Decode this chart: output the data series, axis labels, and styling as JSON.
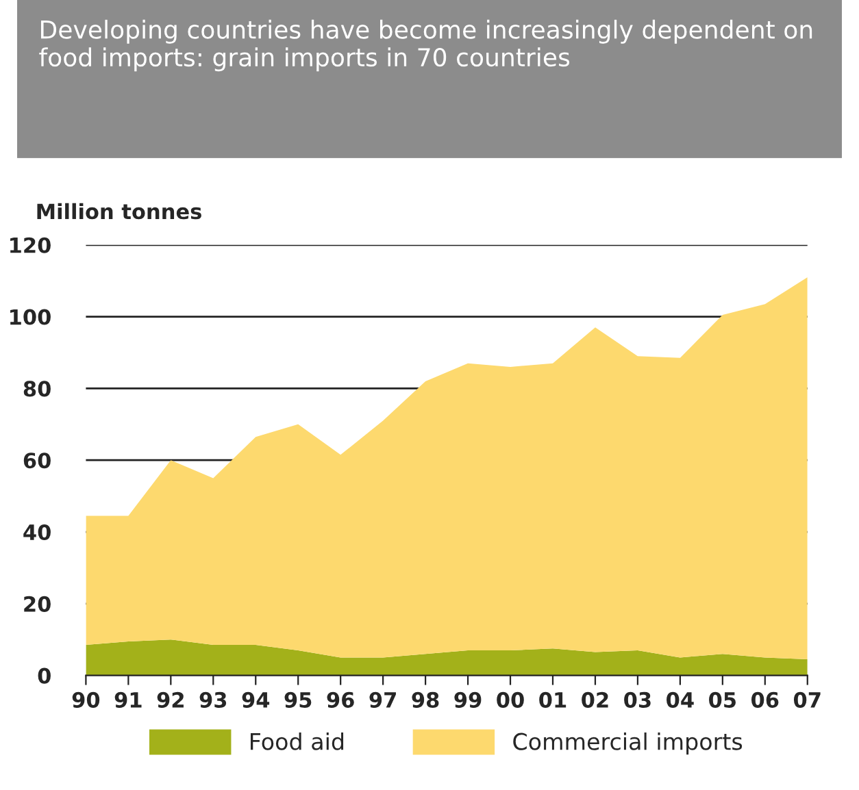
{
  "chart_data": {
    "type": "area",
    "title": "Developing countries have become increasingly dependent on food imports: grain imports in 70 countries",
    "ylabel": "Million tonnes",
    "categories": [
      "90",
      "91",
      "92",
      "93",
      "94",
      "95",
      "96",
      "97",
      "98",
      "99",
      "00",
      "01",
      "02",
      "03",
      "04",
      "05",
      "06",
      "07"
    ],
    "stacked": true,
    "series": [
      {
        "name": "Food aid",
        "color": "#a3b11a",
        "values": [
          8.5,
          9.5,
          10,
          8.5,
          8.5,
          7,
          5,
          5,
          6,
          7,
          7,
          7.5,
          6.5,
          7,
          5,
          6,
          5,
          4.5
        ]
      },
      {
        "name": "Commercial imports",
        "color": "#fdd96e",
        "values": [
          36,
          35,
          50,
          46.5,
          58,
          63,
          56.5,
          66,
          76,
          80,
          79,
          79.5,
          90.5,
          82,
          83.5,
          94.5,
          98.5,
          106.5
        ]
      }
    ],
    "ylim": [
      0,
      120
    ],
    "yticks": [
      0,
      20,
      40,
      60,
      80,
      100,
      120
    ],
    "grid": "y",
    "legend": "bottom"
  }
}
